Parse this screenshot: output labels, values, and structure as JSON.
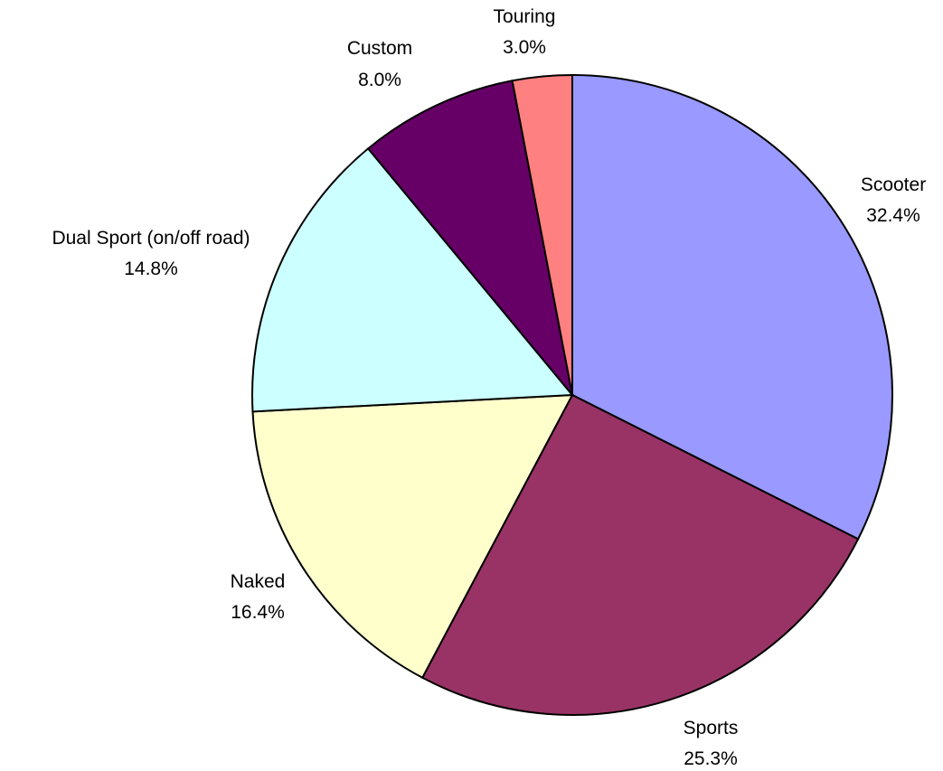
{
  "chart_data": {
    "type": "pie",
    "title": "",
    "start_angle_deg": 0,
    "direction": "clockwise",
    "slices": [
      {
        "label": "Scooter",
        "value": 32.4,
        "value_label": "32.4%",
        "color": "#9999ff"
      },
      {
        "label": "Sports",
        "value": 25.3,
        "value_label": "25.3%",
        "color": "#993366"
      },
      {
        "label": "Naked",
        "value": 16.4,
        "value_label": "16.4%",
        "color": "#ffffcc"
      },
      {
        "label": "Dual Sport (on/off road)",
        "value": 14.8,
        "value_label": "14.8%",
        "color": "#ccffff"
      },
      {
        "label": "Custom",
        "value": 8.0,
        "value_label": "8.0%",
        "color": "#660066"
      },
      {
        "label": "Touring",
        "value": 3.0,
        "value_label": "3.0%",
        "color": "#ff8080"
      }
    ]
  }
}
